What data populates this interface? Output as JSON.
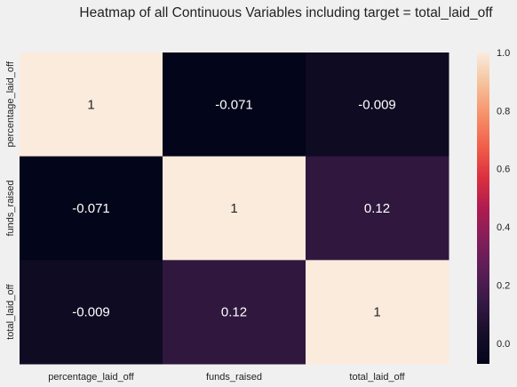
{
  "chart_data": {
    "type": "heatmap",
    "title": "Heatmap of all Continuous Variables including target = total_laid_off",
    "x_categories": [
      "percentage_laid_off",
      "funds_raised",
      "total_laid_off"
    ],
    "y_categories": [
      "percentage_laid_off",
      "funds_raised",
      "total_laid_off"
    ],
    "values": [
      [
        1,
        -0.071,
        -0.009
      ],
      [
        -0.071,
        1,
        0.12
      ],
      [
        -0.009,
        0.12,
        1
      ]
    ],
    "annotations": [
      [
        "1",
        "-0.071",
        "-0.009"
      ],
      [
        "-0.071",
        "1",
        "0.12"
      ],
      [
        "-0.009",
        "0.12",
        "1"
      ]
    ],
    "colorbar": {
      "vmin": -0.071,
      "vmax": 1,
      "ticks": [
        0.0,
        0.2,
        0.4,
        0.6,
        0.8,
        1.0
      ],
      "tick_labels": [
        "0.0",
        "0.2",
        "0.4",
        "0.6",
        "0.8",
        "1.0"
      ],
      "colormap": "rocket"
    }
  }
}
